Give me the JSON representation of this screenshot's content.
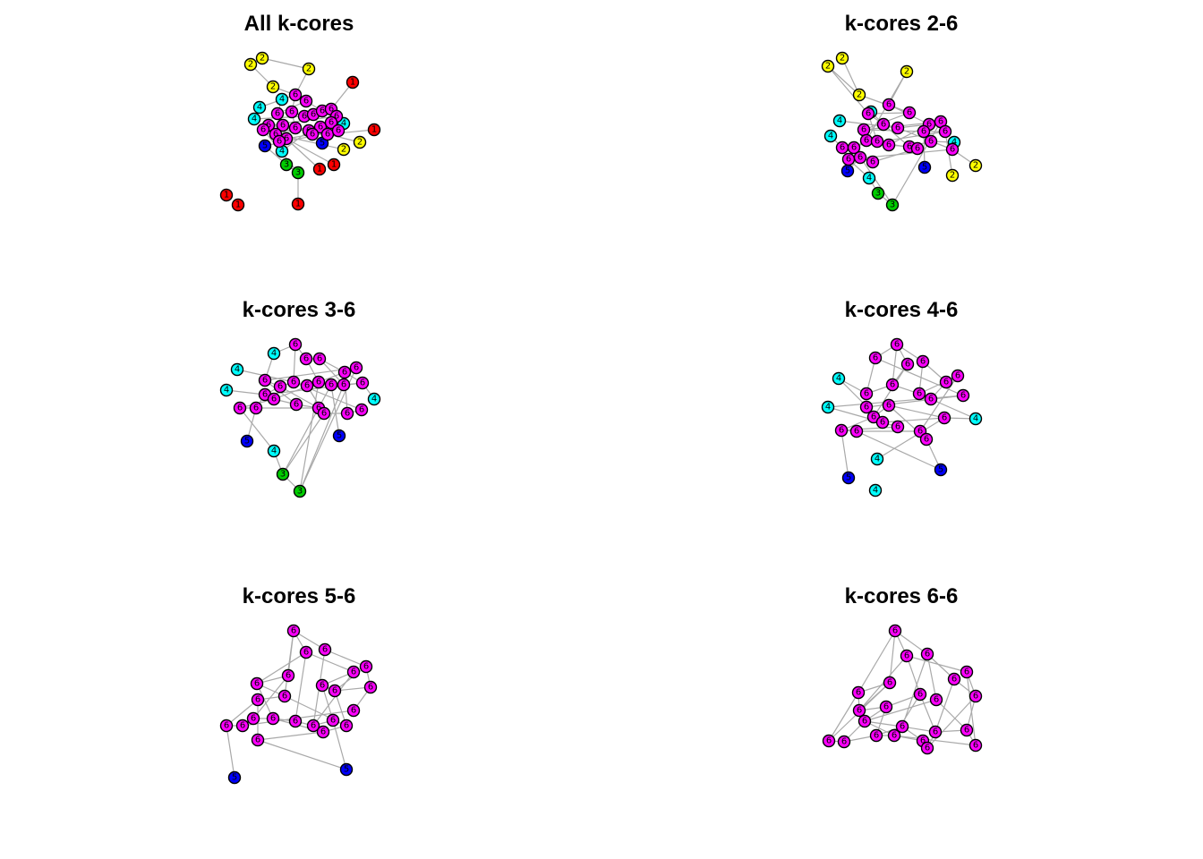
{
  "colors": {
    "1": "#ff0000",
    "2": "#ffff00",
    "3": "#00cd00",
    "4": "#00ffff",
    "5": "#0000ff",
    "6": "#ff00ff",
    "edge": "#a9a9a9"
  },
  "panels": [
    {
      "id": "all-k-cores",
      "title": "All k-cores",
      "nodes": [
        {
          "c": 2,
          "l": "2"
        },
        {
          "c": 2,
          "l": "2"
        },
        {
          "c": 2,
          "l": "2"
        },
        {
          "c": 2,
          "l": "2"
        },
        {
          "c": 2,
          "l": "2"
        },
        {
          "c": 2,
          "l": "2"
        },
        {
          "c": 1,
          "l": "1"
        },
        {
          "c": 1,
          "l": "1"
        },
        {
          "c": 1,
          "l": "1"
        },
        {
          "c": 1,
          "l": "1"
        },
        {
          "c": 1,
          "l": "1"
        },
        {
          "c": 1,
          "l": "1"
        },
        {
          "c": 1,
          "l": "1"
        },
        {
          "c": 3,
          "l": "3"
        },
        {
          "c": 3,
          "l": "3"
        },
        {
          "c": 4,
          "l": "4"
        },
        {
          "c": 4,
          "l": "4"
        },
        {
          "c": 4,
          "l": "4"
        },
        {
          "c": 4,
          "l": "4"
        },
        {
          "c": 4,
          "l": "4"
        },
        {
          "c": 5,
          "l": "5"
        },
        {
          "c": 5,
          "l": "5"
        },
        {
          "c": 6,
          "l": "6"
        },
        {
          "c": 6,
          "l": "6"
        },
        {
          "c": 6,
          "l": "6"
        },
        {
          "c": 6,
          "l": "6"
        },
        {
          "c": 6,
          "l": "6"
        },
        {
          "c": 6,
          "l": "6"
        },
        {
          "c": 6,
          "l": "6"
        },
        {
          "c": 6,
          "l": "6"
        },
        {
          "c": 6,
          "l": "6"
        },
        {
          "c": 6,
          "l": "6"
        },
        {
          "c": 6,
          "l": "6"
        },
        {
          "c": 6,
          "l": "6"
        },
        {
          "c": 6,
          "l": "6"
        },
        {
          "c": 6,
          "l": "6"
        },
        {
          "c": 6,
          "l": "6"
        },
        {
          "c": 6,
          "l": "6"
        },
        {
          "c": 6,
          "l": "6"
        },
        {
          "c": 6,
          "l": "6"
        },
        {
          "c": 6,
          "l": "6"
        },
        {
          "c": 6,
          "l": "6"
        },
        {
          "c": 6,
          "l": "6"
        },
        {
          "c": 6,
          "l": "6"
        }
      ]
    },
    {
      "id": "k-cores-2-6",
      "title": "k-cores 2-6",
      "nodes": [
        {
          "c": 2,
          "l": "2"
        },
        {
          "c": 2,
          "l": "2"
        },
        {
          "c": 2,
          "l": "2"
        },
        {
          "c": 2,
          "l": "2"
        },
        {
          "c": 2,
          "l": "2"
        },
        {
          "c": 2,
          "l": "2"
        },
        {
          "c": 4,
          "l": "4"
        },
        {
          "c": 4,
          "l": "4"
        },
        {
          "c": 4,
          "l": "4"
        },
        {
          "c": 4,
          "l": "4"
        },
        {
          "c": 4,
          "l": "4"
        },
        {
          "c": 3,
          "l": "3"
        },
        {
          "c": 3,
          "l": "3"
        },
        {
          "c": 5,
          "l": "5"
        },
        {
          "c": 5,
          "l": "5"
        },
        {
          "c": 6,
          "l": "6"
        },
        {
          "c": 6,
          "l": "6"
        },
        {
          "c": 6,
          "l": "6"
        },
        {
          "c": 6,
          "l": "6"
        },
        {
          "c": 6,
          "l": "6"
        },
        {
          "c": 6,
          "l": "6"
        },
        {
          "c": 6,
          "l": "6"
        },
        {
          "c": 6,
          "l": "6"
        },
        {
          "c": 6,
          "l": "6"
        },
        {
          "c": 6,
          "l": "6"
        },
        {
          "c": 6,
          "l": "6"
        },
        {
          "c": 6,
          "l": "6"
        },
        {
          "c": 6,
          "l": "6"
        },
        {
          "c": 6,
          "l": "6"
        },
        {
          "c": 6,
          "l": "6"
        },
        {
          "c": 6,
          "l": "6"
        },
        {
          "c": 6,
          "l": "6"
        },
        {
          "c": 6,
          "l": "6"
        },
        {
          "c": 6,
          "l": "6"
        },
        {
          "c": 6,
          "l": "6"
        },
        {
          "c": 6,
          "l": "6"
        },
        {
          "c": 6,
          "l": "6"
        }
      ]
    },
    {
      "id": "k-cores-3-6",
      "title": "k-cores 3-6",
      "nodes": [
        {
          "c": 4,
          "l": "4"
        },
        {
          "c": 4,
          "l": "4"
        },
        {
          "c": 4,
          "l": "4"
        },
        {
          "c": 4,
          "l": "4"
        },
        {
          "c": 4,
          "l": "4"
        },
        {
          "c": 3,
          "l": "3"
        },
        {
          "c": 3,
          "l": "3"
        },
        {
          "c": 5,
          "l": "5"
        },
        {
          "c": 5,
          "l": "5"
        },
        {
          "c": 6,
          "l": "6"
        },
        {
          "c": 6,
          "l": "6"
        },
        {
          "c": 6,
          "l": "6"
        },
        {
          "c": 6,
          "l": "6"
        },
        {
          "c": 6,
          "l": "6"
        },
        {
          "c": 6,
          "l": "6"
        },
        {
          "c": 6,
          "l": "6"
        },
        {
          "c": 6,
          "l": "6"
        },
        {
          "c": 6,
          "l": "6"
        },
        {
          "c": 6,
          "l": "6"
        },
        {
          "c": 6,
          "l": "6"
        },
        {
          "c": 6,
          "l": "6"
        },
        {
          "c": 6,
          "l": "6"
        },
        {
          "c": 6,
          "l": "6"
        },
        {
          "c": 6,
          "l": "6"
        },
        {
          "c": 6,
          "l": "6"
        },
        {
          "c": 6,
          "l": "6"
        },
        {
          "c": 6,
          "l": "6"
        },
        {
          "c": 6,
          "l": "6"
        },
        {
          "c": 6,
          "l": "6"
        },
        {
          "c": 6,
          "l": "6"
        },
        {
          "c": 6,
          "l": "6"
        }
      ]
    },
    {
      "id": "k-cores-4-6",
      "title": "k-cores 4-6",
      "nodes": [
        {
          "c": 4,
          "l": "4"
        },
        {
          "c": 4,
          "l": "4"
        },
        {
          "c": 4,
          "l": "4"
        },
        {
          "c": 4,
          "l": "4"
        },
        {
          "c": 4,
          "l": "4"
        },
        {
          "c": 5,
          "l": "5"
        },
        {
          "c": 5,
          "l": "5"
        },
        {
          "c": 6,
          "l": "6"
        },
        {
          "c": 6,
          "l": "6"
        },
        {
          "c": 6,
          "l": "6"
        },
        {
          "c": 6,
          "l": "6"
        },
        {
          "c": 6,
          "l": "6"
        },
        {
          "c": 6,
          "l": "6"
        },
        {
          "c": 6,
          "l": "6"
        },
        {
          "c": 6,
          "l": "6"
        },
        {
          "c": 6,
          "l": "6"
        },
        {
          "c": 6,
          "l": "6"
        },
        {
          "c": 6,
          "l": "6"
        },
        {
          "c": 6,
          "l": "6"
        },
        {
          "c": 6,
          "l": "6"
        },
        {
          "c": 6,
          "l": "6"
        },
        {
          "c": 6,
          "l": "6"
        },
        {
          "c": 6,
          "l": "6"
        },
        {
          "c": 6,
          "l": "6"
        },
        {
          "c": 6,
          "l": "6"
        },
        {
          "c": 6,
          "l": "6"
        },
        {
          "c": 6,
          "l": "6"
        },
        {
          "c": 6,
          "l": "6"
        }
      ]
    },
    {
      "id": "k-cores-5-6",
      "title": "k-cores 5-6",
      "nodes": [
        {
          "c": 5,
          "l": "5"
        },
        {
          "c": 5,
          "l": "5"
        },
        {
          "c": 6,
          "l": "6"
        },
        {
          "c": 6,
          "l": "6"
        },
        {
          "c": 6,
          "l": "6"
        },
        {
          "c": 6,
          "l": "6"
        },
        {
          "c": 6,
          "l": "6"
        },
        {
          "c": 6,
          "l": "6"
        },
        {
          "c": 6,
          "l": "6"
        },
        {
          "c": 6,
          "l": "6"
        },
        {
          "c": 6,
          "l": "6"
        },
        {
          "c": 6,
          "l": "6"
        },
        {
          "c": 6,
          "l": "6"
        },
        {
          "c": 6,
          "l": "6"
        },
        {
          "c": 6,
          "l": "6"
        },
        {
          "c": 6,
          "l": "6"
        },
        {
          "c": 6,
          "l": "6"
        },
        {
          "c": 6,
          "l": "6"
        },
        {
          "c": 6,
          "l": "6"
        },
        {
          "c": 6,
          "l": "6"
        },
        {
          "c": 6,
          "l": "6"
        },
        {
          "c": 6,
          "l": "6"
        },
        {
          "c": 6,
          "l": "6"
        },
        {
          "c": 6,
          "l": "6"
        },
        {
          "c": 6,
          "l": "6"
        }
      ]
    },
    {
      "id": "k-cores-6-6",
      "title": "k-cores 6-6",
      "nodes": [
        {
          "c": 6,
          "l": "6"
        },
        {
          "c": 6,
          "l": "6"
        },
        {
          "c": 6,
          "l": "6"
        },
        {
          "c": 6,
          "l": "6"
        },
        {
          "c": 6,
          "l": "6"
        },
        {
          "c": 6,
          "l": "6"
        },
        {
          "c": 6,
          "l": "6"
        },
        {
          "c": 6,
          "l": "6"
        },
        {
          "c": 6,
          "l": "6"
        },
        {
          "c": 6,
          "l": "6"
        },
        {
          "c": 6,
          "l": "6"
        },
        {
          "c": 6,
          "l": "6"
        },
        {
          "c": 6,
          "l": "6"
        },
        {
          "c": 6,
          "l": "6"
        },
        {
          "c": 6,
          "l": "6"
        },
        {
          "c": 6,
          "l": "6"
        },
        {
          "c": 6,
          "l": "6"
        },
        {
          "c": 6,
          "l": "6"
        },
        {
          "c": 6,
          "l": "6"
        },
        {
          "c": 6,
          "l": "6"
        },
        {
          "c": 6,
          "l": "6"
        },
        {
          "c": 6,
          "l": "6"
        },
        {
          "c": 6,
          "l": "6"
        }
      ]
    }
  ]
}
